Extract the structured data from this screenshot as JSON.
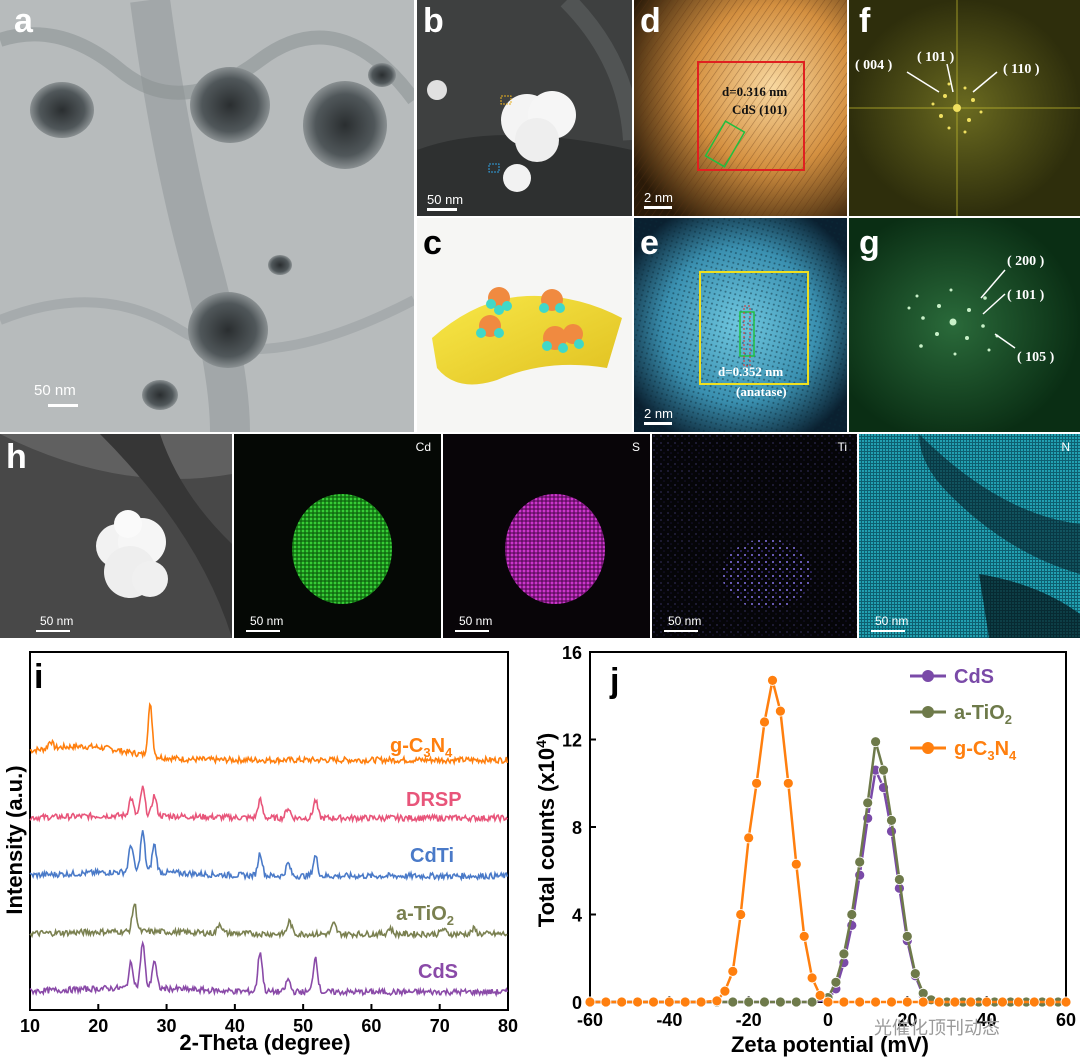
{
  "panels": {
    "a": {
      "label": "a",
      "scalebar": "50 nm"
    },
    "b": {
      "label": "b",
      "scalebar": "50 nm"
    },
    "c": {
      "label": "c"
    },
    "d": {
      "label": "d",
      "scalebar": "2 nm",
      "d_spacing": "d=0.316 nm",
      "plane": "CdS (101)"
    },
    "e": {
      "label": "e",
      "scalebar": "2 nm",
      "d_spacing": "d=0.352 nm",
      "phase": "(anatase)"
    },
    "f": {
      "label": "f",
      "spots": [
        "( 004 )",
        "( 101 )",
        "( 110 )"
      ]
    },
    "g": {
      "label": "g",
      "spots": [
        "( 200 )",
        "( 101 )",
        "( 105 )"
      ]
    },
    "h": {
      "label": "h",
      "scalebar": "50 nm",
      "maps": [
        {
          "element": "Cd",
          "scalebar": "50 nm",
          "color": "#2ecc2e"
        },
        {
          "element": "S",
          "scalebar": "50 nm",
          "color": "#d020d0"
        },
        {
          "element": "Ti",
          "scalebar": "50 nm",
          "color": "#7060d0"
        },
        {
          "element": "N",
          "scalebar": "50 nm",
          "color": "#18b8c8"
        }
      ]
    }
  },
  "chart_data": [
    {
      "id": "i",
      "label": "i",
      "type": "line",
      "xlabel": "2-Theta (degree)",
      "ylabel": "Intensity (a.u.)",
      "xlim": [
        10,
        80
      ],
      "xticks": [
        "10",
        "20",
        "30",
        "40",
        "50",
        "60",
        "70",
        "80"
      ],
      "series": [
        {
          "name": "g-C3N4",
          "color": "#ff7f0e",
          "offset": 4,
          "peaks": [
            [
              13.0,
              0.15
            ],
            [
              27.6,
              1.0
            ]
          ],
          "base": 0.25
        },
        {
          "name": "DRSP",
          "color": "#e8557a",
          "offset": 3,
          "peaks": [
            [
              24.8,
              0.35
            ],
            [
              26.5,
              0.55
            ],
            [
              28.2,
              0.4
            ],
            [
              43.7,
              0.35
            ],
            [
              47.8,
              0.2
            ],
            [
              51.8,
              0.35
            ]
          ],
          "base": 0.05
        },
        {
          "name": "CdTi",
          "color": "#4a7ac8",
          "offset": 2,
          "peaks": [
            [
              24.8,
              0.55
            ],
            [
              26.5,
              0.8
            ],
            [
              28.2,
              0.55
            ],
            [
              43.7,
              0.45
            ],
            [
              47.8,
              0.25
            ],
            [
              51.8,
              0.4
            ]
          ],
          "base": 0.08
        },
        {
          "name": "a-TiO2",
          "color": "#7a8050",
          "offset": 1,
          "peaks": [
            [
              25.3,
              0.55
            ],
            [
              37.8,
              0.2
            ],
            [
              48.0,
              0.25
            ],
            [
              54.5,
              0.2
            ],
            [
              62.7,
              0.12
            ],
            [
              70.5,
              0.1
            ],
            [
              75.0,
              0.1
            ]
          ],
          "base": 0.05
        },
        {
          "name": "CdS",
          "color": "#8a4aa8",
          "offset": 0,
          "peaks": [
            [
              24.8,
              0.5
            ],
            [
              26.5,
              0.9
            ],
            [
              28.2,
              0.55
            ],
            [
              43.7,
              0.8
            ],
            [
              47.8,
              0.25
            ],
            [
              51.8,
              0.7
            ]
          ],
          "base": 0.08
        }
      ],
      "legend_labels": {
        "g": "g-C",
        "g_sub1": "3",
        "g_mid": "N",
        "g_sub2": "4",
        "drsp": "DRSP",
        "cdti": "CdTi",
        "tio": "a-TiO",
        "tio_sub": "2",
        "cds": "CdS"
      }
    },
    {
      "id": "j",
      "label": "j",
      "type": "line",
      "xlabel": "Zeta potential (mV)",
      "ylabel": "Total counts (x10",
      "ylabel_sup": "4",
      "ylabel_end": ")",
      "xlim": [
        -60,
        60
      ],
      "ylim": [
        0,
        16
      ],
      "xticks": [
        "-60",
        "-40",
        "-20",
        "0",
        "20",
        "40",
        "60"
      ],
      "yticks": [
        "0",
        "4",
        "8",
        "12",
        "16"
      ],
      "legend_placement": "top-right",
      "series": [
        {
          "name": "CdS",
          "color": "#7a4aa8",
          "x": [
            -60,
            -56,
            -52,
            -48,
            -44,
            -40,
            -36,
            -32,
            -28,
            -24,
            -20,
            -16,
            -12,
            -8,
            -4,
            0,
            2,
            4,
            6,
            8,
            10,
            12,
            14,
            16,
            18,
            20,
            22,
            24,
            26,
            28,
            30,
            34,
            38,
            42,
            46,
            50,
            54,
            58,
            60
          ],
          "y": [
            0,
            0,
            0,
            0,
            0,
            0,
            0,
            0,
            0,
            0,
            0,
            0,
            0,
            0,
            0,
            0.1,
            0.6,
            1.8,
            3.5,
            5.8,
            8.4,
            10.6,
            9.8,
            7.8,
            5.2,
            2.8,
            1.2,
            0.3,
            0.1,
            0,
            0,
            0,
            0,
            0,
            0,
            0,
            0,
            0,
            0
          ]
        },
        {
          "name": "a-TiO2",
          "color": "#6e7a4a",
          "x": [
            -60,
            -56,
            -52,
            -48,
            -44,
            -40,
            -36,
            -32,
            -28,
            -24,
            -20,
            -16,
            -12,
            -8,
            -4,
            0,
            2,
            4,
            6,
            8,
            10,
            12,
            14,
            16,
            18,
            20,
            22,
            24,
            26,
            28,
            30,
            34,
            38,
            42,
            46,
            50,
            54,
            58,
            60
          ],
          "y": [
            0,
            0,
            0,
            0,
            0,
            0,
            0,
            0,
            0,
            0,
            0,
            0,
            0,
            0,
            0,
            0.2,
            0.9,
            2.2,
            4.0,
            6.4,
            9.1,
            11.9,
            10.6,
            8.3,
            5.6,
            3.0,
            1.3,
            0.4,
            0.1,
            0,
            0,
            0,
            0,
            0,
            0,
            0,
            0,
            0,
            0
          ]
        },
        {
          "name": "g-C3N4",
          "color": "#ff7f0e",
          "x": [
            -60,
            -56,
            -52,
            -48,
            -44,
            -40,
            -36,
            -32,
            -28,
            -26,
            -24,
            -22,
            -20,
            -18,
            -16,
            -14,
            -12,
            -10,
            -8,
            -6,
            -4,
            -2,
            0,
            4,
            8,
            12,
            16,
            20,
            24,
            28,
            32,
            36,
            40,
            44,
            48,
            52,
            56,
            60
          ],
          "y": [
            0,
            0,
            0,
            0,
            0,
            0,
            0,
            0,
            0.05,
            0.5,
            1.4,
            4.0,
            7.5,
            10.0,
            12.8,
            14.7,
            13.3,
            10.0,
            6.3,
            3.0,
            1.1,
            0.3,
            0,
            0,
            0,
            0,
            0,
            0,
            0,
            0,
            0,
            0,
            0,
            0,
            0,
            0,
            0,
            0
          ]
        }
      ],
      "legend": {
        "cds": "CdS",
        "tio": "a-TiO",
        "tio_sub": "2",
        "g": "g-C",
        "g_sub1": "3",
        "g_mid": "N",
        "g_sub2": "4"
      }
    }
  ],
  "watermark": "光催化顶刊动态"
}
